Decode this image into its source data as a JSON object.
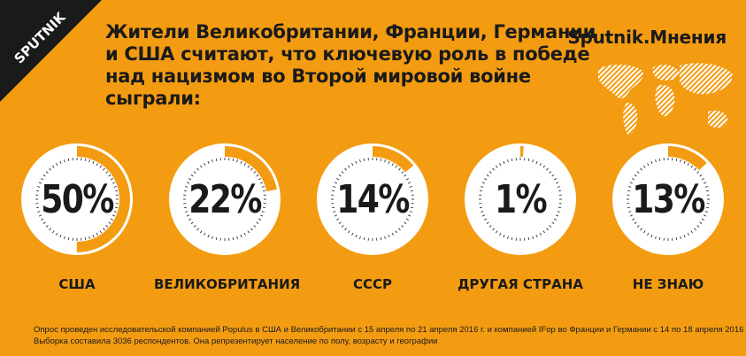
{
  "header": {
    "logo_text": "SPUTNIK",
    "headline": "Жители Великобритании, Франции, Германии и США считают, что ключевую роль в победе над нацизмом во Второй мировой войне сыграли:",
    "brand": "Sputnik.Мнения"
  },
  "colors": {
    "background": "#f39c12",
    "ring_fill": "#ffffff",
    "ring_track": "#f39c12",
    "progress": "#f39c12",
    "text": "#1a1a1a"
  },
  "chart_data": {
    "type": "gauge",
    "title": "Жители Великобритании, Франции, Германии и США считают, что ключевую роль в победе над нацизмом во Второй мировой войне сыграли:",
    "categories": [
      "США",
      "ВЕЛИКОБРИТАНИЯ",
      "СССР",
      "ДРУГАЯ СТРАНА",
      "НЕ ЗНАЮ"
    ],
    "values": [
      50,
      22,
      14,
      1,
      13
    ],
    "value_labels": [
      "50%",
      "22%",
      "14%",
      "1%",
      "13%"
    ],
    "unit": "%"
  },
  "footnote": {
    "line1": "Опрос проведен исследовательской компанией Populus в США и Великобритании с 15 апреля по 21 апреля 2016 г. и компанией IFop во Франции и Германии с 14 по 18 апреля 2016 г.",
    "line2": "Выборка составила 3036 респондентов. Она репрезентирует население по полу, возрасту и географии"
  }
}
